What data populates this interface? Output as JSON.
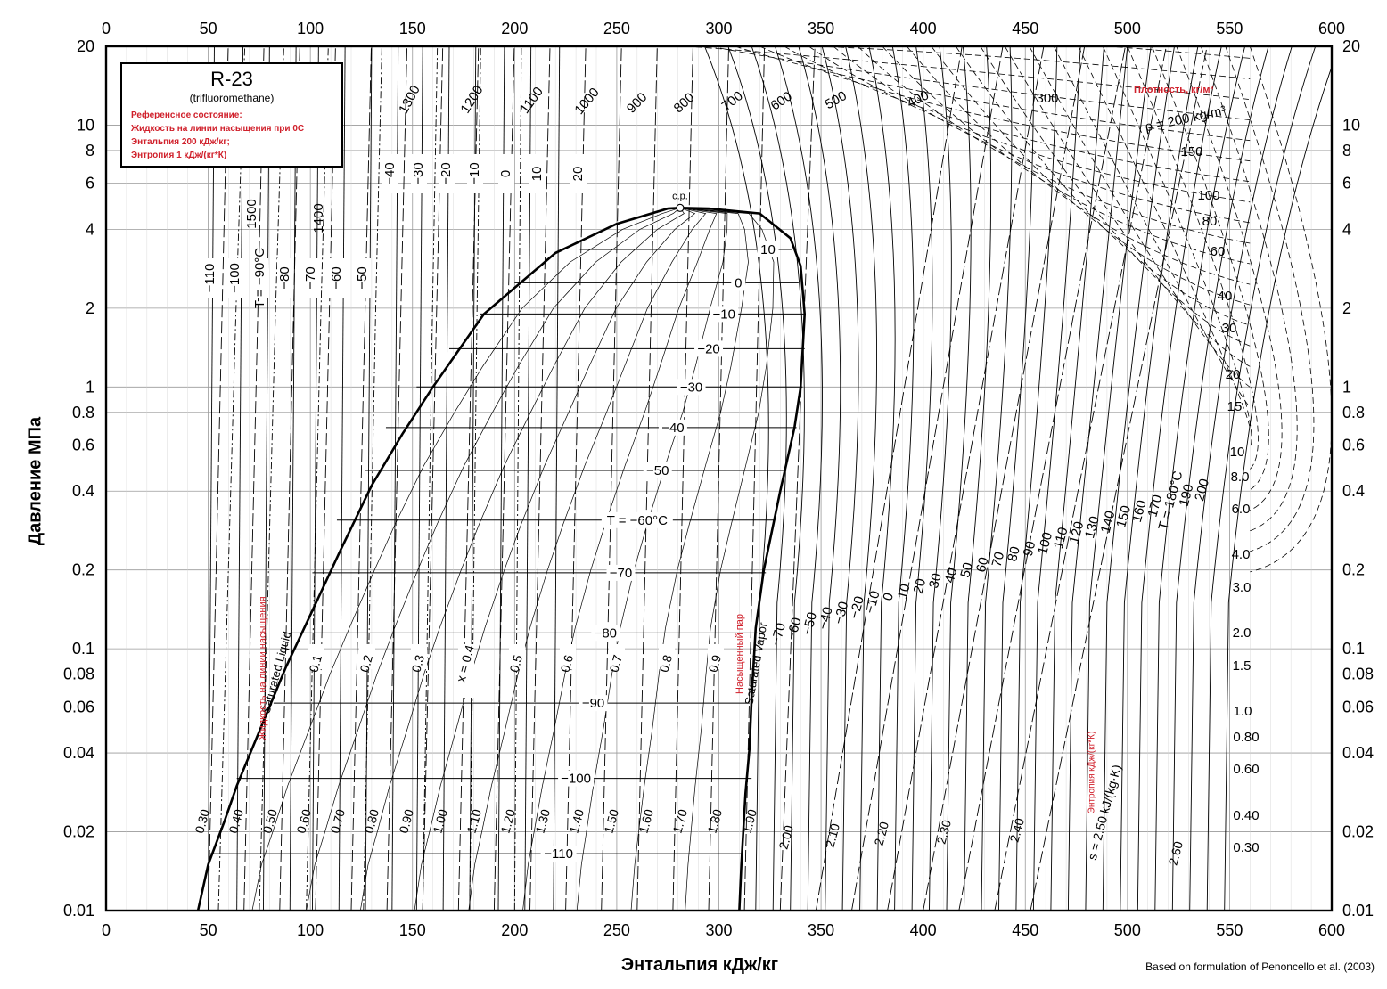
{
  "chart_data": {
    "type": "line",
    "title": "R-23",
    "subtitle": "(trifluoromethane)",
    "reference_state": [
      "Референсное состояние:",
      "Жидкость на линии насыщения при 0C",
      "Энтальпия 200 кДж/кг;",
      "Энтропия 1 кДж/(кг*К)"
    ],
    "xlabel": "Энтальпия кДж/кг",
    "ylabel": "Давление МПа",
    "credit": "Based on formulation of Penoncello et al. (2003)",
    "xlim": [
      0,
      600
    ],
    "ylim": [
      0.01,
      20
    ],
    "yscale": "log",
    "x_ticks": [
      0,
      50,
      100,
      150,
      200,
      250,
      300,
      350,
      400,
      450,
      500,
      550,
      600
    ],
    "y_ticks": [
      {
        "v": 0.01,
        "label": "0.01"
      },
      {
        "v": 0.02,
        "label": "0.02"
      },
      {
        "v": 0.04,
        "label": "0.04"
      },
      {
        "v": 0.06,
        "label": "0.06"
      },
      {
        "v": 0.08,
        "label": "0.08"
      },
      {
        "v": 0.1,
        "label": "0.1"
      },
      {
        "v": 0.2,
        "label": "0.2"
      },
      {
        "v": 0.4,
        "label": "0.4"
      },
      {
        "v": 0.6,
        "label": "0.6"
      },
      {
        "v": 0.8,
        "label": "0.8"
      },
      {
        "v": 1,
        "label": "1"
      },
      {
        "v": 2,
        "label": "2"
      },
      {
        "v": 4,
        "label": "4"
      },
      {
        "v": 6,
        "label": "6"
      },
      {
        "v": 8,
        "label": "8"
      },
      {
        "v": 10,
        "label": "10"
      },
      {
        "v": 20,
        "label": "20"
      }
    ],
    "grid": true,
    "critical_point": {
      "label": "c.p.",
      "h": 281,
      "p": 4.83
    },
    "saturation_dome": {
      "liquid": [
        [
          45,
          0.01
        ],
        [
          50,
          0.015
        ],
        [
          58,
          0.022
        ],
        [
          64,
          0.03
        ],
        [
          80,
          0.06
        ],
        [
          88,
          0.085
        ],
        [
          101,
          0.14
        ],
        [
          115,
          0.24
        ],
        [
          130,
          0.42
        ],
        [
          145,
          0.66
        ],
        [
          160,
          1.0
        ],
        [
          185,
          1.9
        ],
        [
          220,
          3.25
        ],
        [
          250,
          4.2
        ],
        [
          275,
          4.8
        ],
        [
          281,
          4.83
        ]
      ],
      "vapor": [
        [
          281,
          4.83
        ],
        [
          295,
          4.8
        ],
        [
          320,
          4.6
        ],
        [
          335,
          3.7
        ],
        [
          340,
          2.9
        ],
        [
          342,
          1.9
        ],
        [
          340,
          1.0
        ],
        [
          337,
          0.7
        ],
        [
          330,
          0.4
        ],
        [
          322,
          0.2
        ],
        [
          318,
          0.12
        ],
        [
          316,
          0.065
        ],
        [
          315,
          0.042
        ],
        [
          313,
          0.028
        ],
        [
          311,
          0.015
        ],
        [
          310,
          0.01
        ]
      ],
      "labels": [
        "Saturated Liquid",
        "Жидкость на линии насыщения",
        "Saturated Vapor",
        "Насыщенный пар"
      ]
    },
    "isotherms_two_phase": [
      {
        "label": "10",
        "p": 3.35,
        "h_start": 232,
        "h_end": 336
      },
      {
        "label": "0",
        "p": 2.5,
        "h_start": 200,
        "h_end": 339
      },
      {
        "label": "−10",
        "p": 1.9,
        "h_start": 183,
        "h_end": 342
      },
      {
        "label": "−20",
        "p": 1.4,
        "h_start": 168,
        "h_end": 342
      },
      {
        "label": "−30",
        "p": 1.0,
        "h_start": 152,
        "h_end": 341
      },
      {
        "label": "−40",
        "p": 0.7,
        "h_start": 137,
        "h_end": 338
      },
      {
        "label": "−50",
        "p": 0.48,
        "h_start": 127,
        "h_end": 333
      },
      {
        "label": "T = −60°C",
        "p": 0.31,
        "h_start": 113,
        "h_end": 327
      },
      {
        "label": "−70",
        "p": 0.195,
        "h_start": 101,
        "h_end": 323
      },
      {
        "label": "−80",
        "p": 0.115,
        "h_start": 90,
        "h_end": 319
      },
      {
        "label": "−90",
        "p": 0.062,
        "h_start": 82,
        "h_end": 315
      },
      {
        "label": "−100",
        "p": 0.032,
        "h_start": 64,
        "h_end": 316
      },
      {
        "label": "−110",
        "p": 0.0165,
        "h_start": 51,
        "h_end": 312
      }
    ],
    "liquid_isotherm_labels": [
      "−110",
      "−100",
      "T = −90°C",
      "−80",
      "−70",
      "−60",
      "−50",
      "−40",
      "−30",
      "−20",
      "−10",
      "0",
      "10",
      "20"
    ],
    "vapor_isotherm_labels": [
      "−70",
      "−60",
      "−50",
      "−40",
      "−30",
      "−20",
      "−10",
      "0",
      "10",
      "20",
      "30",
      "40",
      "50",
      "60",
      "70",
      "80",
      "90",
      "100",
      "110",
      "120",
      "130",
      "140",
      "150",
      "160",
      "170",
      "T = 180°C",
      "190",
      "200"
    ],
    "quality_labels": [
      "0.1",
      "0.2",
      "0.3",
      "x = 0.4",
      "0.5",
      "0.6",
      "0.7",
      "0.8",
      "0.9"
    ],
    "entropy_labels": [
      "0.30",
      "0.40",
      "0.50",
      "0.60",
      "0.70",
      "0.80",
      "0.90",
      "1.00",
      "1.10",
      "1.20",
      "1.30",
      "1.40",
      "1.50",
      "1.60",
      "1.70",
      "1.80",
      "1.90",
      "2.00",
      "2.10",
      "2.20",
      "2.30",
      "2.40",
      "s = 2.50 kJ/(kg·K)",
      "2.60"
    ],
    "entropy_label_ru": "Энтропия кДж/(кг*К)",
    "density_labels": [
      "1500",
      "1400",
      "1300",
      "1200",
      "1100",
      "1000",
      "900",
      "800",
      "700",
      "600",
      "500",
      "400",
      "300",
      "ρ = 200 kg/m³",
      "150",
      "100",
      "80",
      "60",
      "40",
      "30",
      "20",
      "15",
      "10",
      "8.0",
      "6.0",
      "4.0",
      "3.0",
      "2.0",
      "1.5",
      "1.0",
      "0.80",
      "0.60",
      "0.40",
      "0.30"
    ],
    "density_label_ru": "Плотность, кг/м³"
  }
}
